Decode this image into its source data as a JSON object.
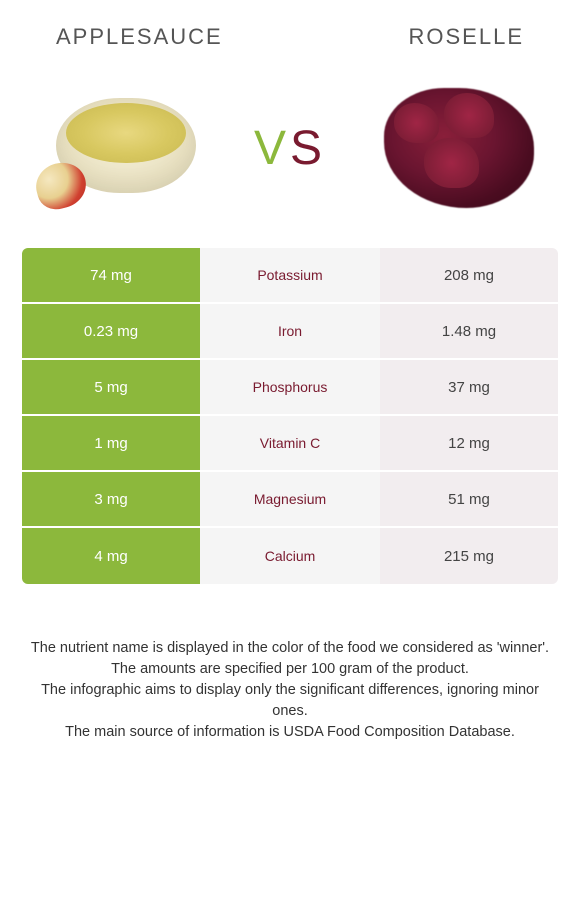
{
  "header": {
    "left_title": "Applesauce",
    "right_title": "Roselle"
  },
  "vs": {
    "v": "v",
    "s": "s"
  },
  "colors": {
    "green": "#8cb83c",
    "red": "#791a2f",
    "light_red": "#f2edef",
    "mid_bg": "#f5f5f5",
    "white": "#ffffff"
  },
  "table": {
    "rows": [
      {
        "left": "74 mg",
        "label": "Potassium",
        "right": "208 mg",
        "winner": "right"
      },
      {
        "left": "0.23 mg",
        "label": "Iron",
        "right": "1.48 mg",
        "winner": "right"
      },
      {
        "left": "5 mg",
        "label": "Phosphorus",
        "right": "37 mg",
        "winner": "right"
      },
      {
        "left": "1 mg",
        "label": "Vitamin C",
        "right": "12 mg",
        "winner": "right"
      },
      {
        "left": "3 mg",
        "label": "Magnesium",
        "right": "51 mg",
        "winner": "right"
      },
      {
        "left": "4 mg",
        "label": "Calcium",
        "right": "215 mg",
        "winner": "right"
      }
    ]
  },
  "footer": {
    "line1": "The nutrient name is displayed in the color of the food we considered as 'winner'.",
    "line2": "The amounts are specified per 100 gram of the product.",
    "line3": "The infographic aims to display only the significant differences, ignoring minor ones.",
    "line4": "The main source of information is USDA Food Composition Database."
  }
}
